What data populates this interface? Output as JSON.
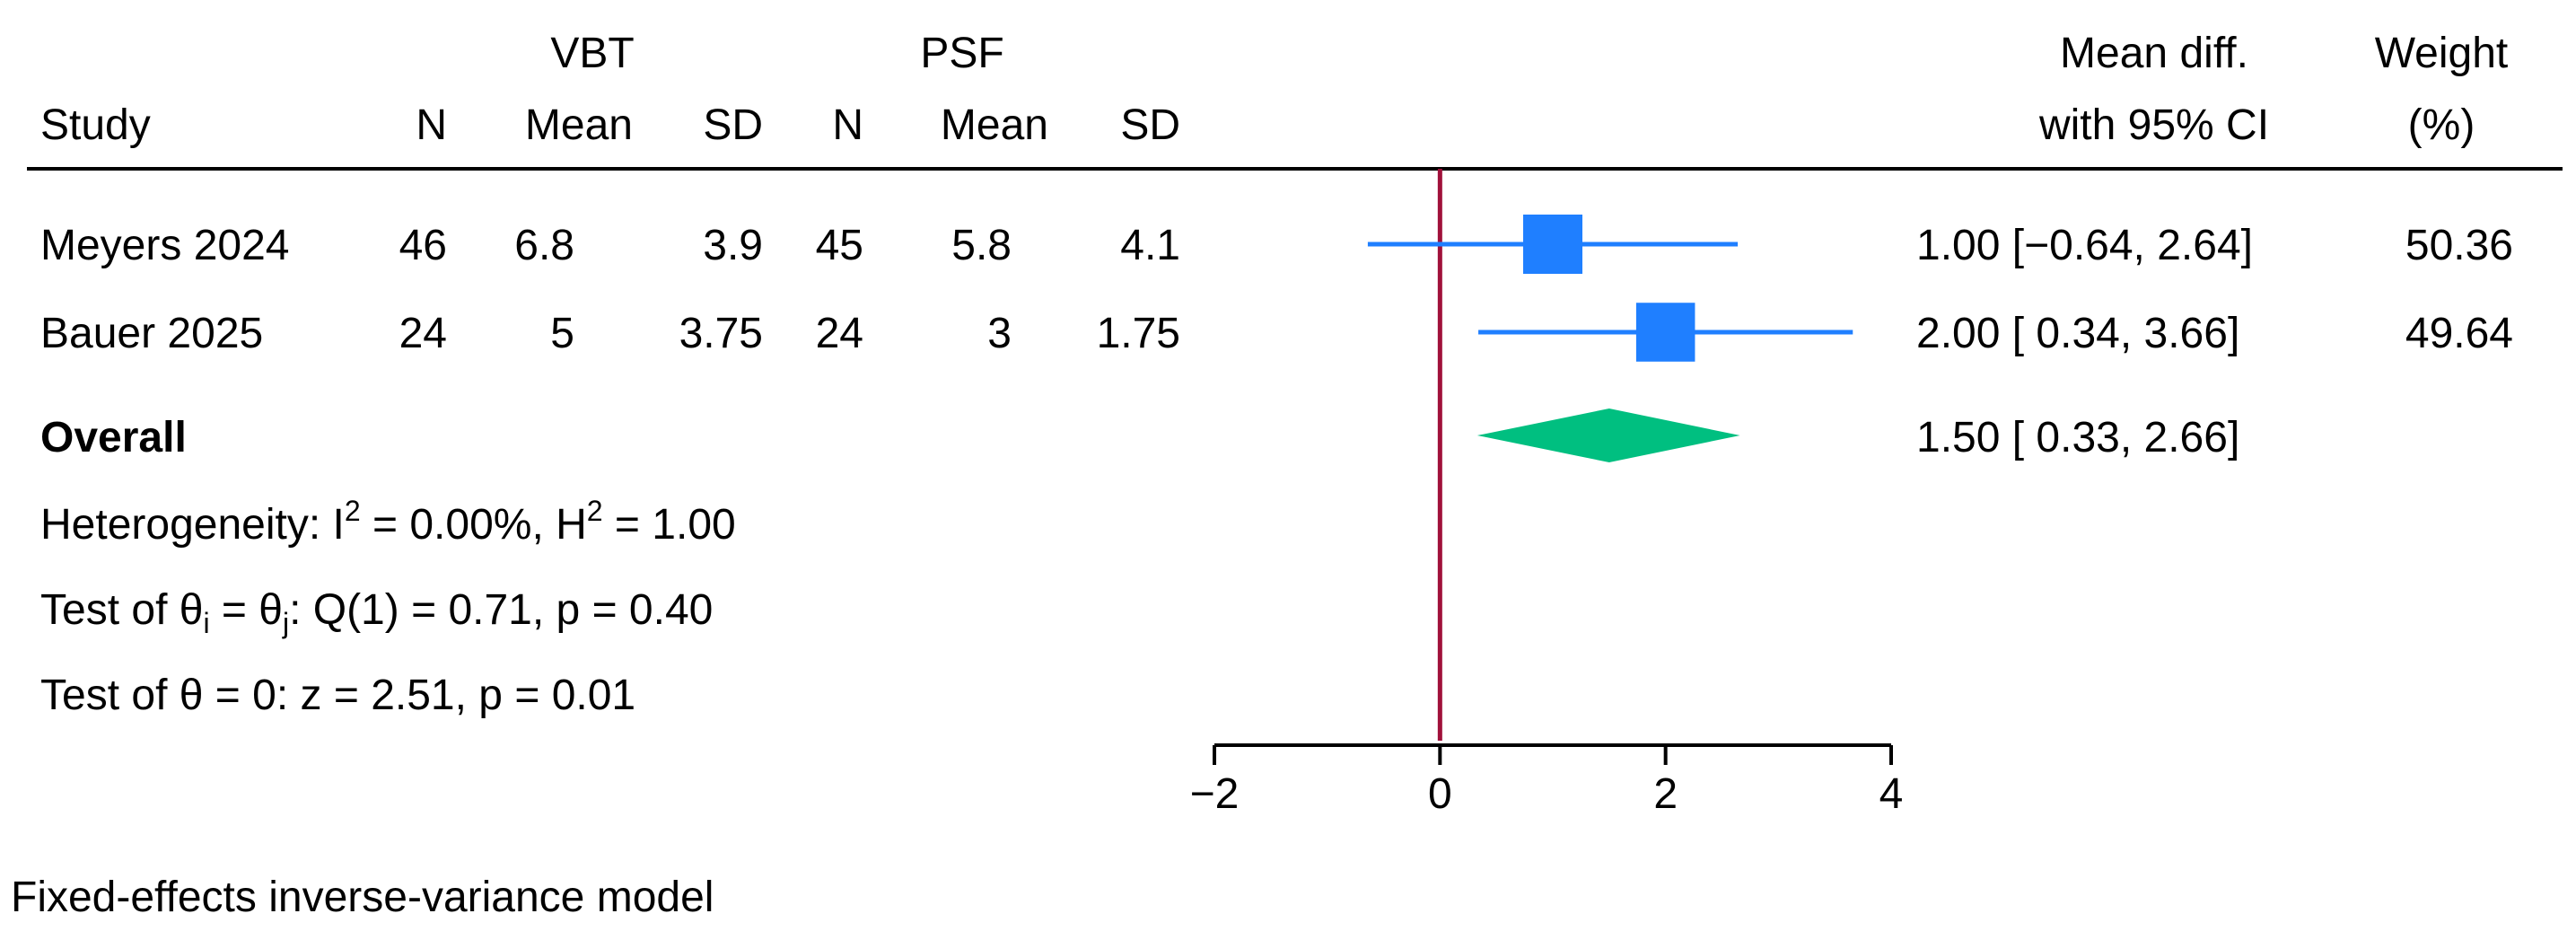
{
  "headers": {
    "group1": "VBT",
    "group2": "PSF",
    "study": "Study",
    "n": "N",
    "mean": "Mean",
    "sd": "SD",
    "effect_line1": "Mean diff.",
    "effect_line2": "with 95% CI",
    "weight_line1": "Weight",
    "weight_line2": "(%)"
  },
  "overall": {
    "label": "Overall",
    "text": "1.50 [  0.33,  2.66]"
  },
  "stats": {
    "heterogeneity": {
      "prefix": "Heterogeneity: I",
      "sup1": "2",
      "mid": " = 0.00%, H",
      "sup2": "2",
      "suffix": " = 1.00"
    },
    "test_q": {
      "a": "Test of θ",
      "sub_i": "i",
      "b": " = θ",
      "sub_j": "j",
      "c": ": Q(1) = 0.71, p = 0.40"
    },
    "test_z": "Test of θ = 0: z = 2.51, p = 0.01"
  },
  "footnote": "Fixed-effects inverse-variance model",
  "colors": {
    "study_marker": "#1f7fff",
    "overall_diamond": "#00bf80",
    "null_line": "#a0103a",
    "rule": "#000000"
  },
  "chart_data": {
    "type": "forest",
    "measure": "Mean diff.",
    "null_value": 0,
    "xlim": [
      -2,
      4
    ],
    "xticks": [
      -2,
      0,
      2,
      4
    ],
    "xtick_labels": [
      "−2",
      "0",
      "2",
      "4"
    ],
    "studies": [
      {
        "name": "Meyers 2024",
        "n1": "46",
        "mean1": "6.8",
        "sd1": "3.9",
        "n2": "45",
        "mean2": "5.8",
        "sd2": "4.1",
        "est": 1.0,
        "lo": -0.64,
        "hi": 2.64,
        "ci_text": "1.00 [−0.64,  2.64]",
        "weight": 50.36,
        "weight_text": "50.36"
      },
      {
        "name": "Bauer 2025",
        "n1": "24",
        "mean1": "5",
        "sd1": "3.75",
        "n2": "24",
        "mean2": "3",
        "sd2": "1.75",
        "est": 2.0,
        "lo": 0.34,
        "hi": 3.66,
        "ci_text": "2.00 [  0.34,  3.66]",
        "weight": 49.64,
        "weight_text": "49.64"
      }
    ],
    "overall": {
      "est": 1.5,
      "lo": 0.33,
      "hi": 2.66
    }
  }
}
